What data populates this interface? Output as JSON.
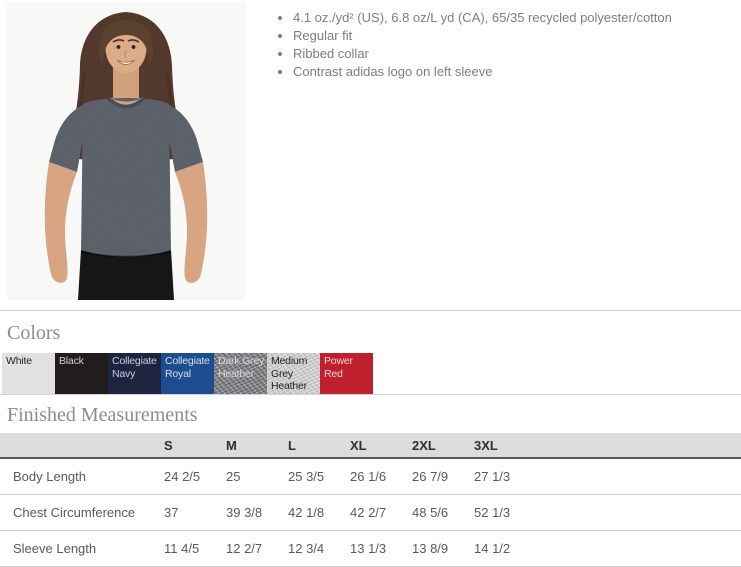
{
  "product": {
    "bullets": [
      "4.1 oz./yd² (US), 6.8 oz/L yd (CA), 65/35 recycled polyester/cotton",
      "Regular fit",
      "Ribbed collar",
      "Contrast adidas logo on left sleeve"
    ],
    "photo": {
      "description": "female model wearing dark grey heather t-shirt",
      "background": "#f7f7f6",
      "shirt_color": "#585d66",
      "pants_color": "#161616",
      "hair_color": "#53392b",
      "skin_color": "#dcab88"
    }
  },
  "colors_section": {
    "title": "Colors",
    "swatches": [
      {
        "label": "White",
        "bg": "#e3e1df",
        "text_color": "#1f1f1f",
        "heather": false
      },
      {
        "label": "Black",
        "bg": "#211d1c",
        "text_color": "#cfcfcf",
        "heather": false
      },
      {
        "label": "Collegiate Navy",
        "bg": "#1d2440",
        "text_color": "#c6cedd",
        "heather": false
      },
      {
        "label": "Collegiate Royal",
        "bg": "#1d4c8f",
        "text_color": "#d6dfeb",
        "heather": false
      },
      {
        "label": "Dark Grey Heather",
        "bg": "#5d6064",
        "text_color": "#d9d9d9",
        "heather": true
      },
      {
        "label": "Medium Grey Heather",
        "bg": "#c8c6c2",
        "text_color": "#1f1f1f",
        "heather": true
      },
      {
        "label": "Power Red",
        "bg": "#bf202e",
        "text_color": "#f0d2d4",
        "heather": false
      }
    ]
  },
  "measurements_section": {
    "title": "Finished Measurements",
    "columns": [
      "S",
      "M",
      "L",
      "XL",
      "2XL",
      "3XL"
    ],
    "rows": [
      {
        "label": "Body Length",
        "values": [
          "24 2/5",
          "25",
          "25 3/5",
          "26 1/6",
          "26 7/9",
          "27 1/3"
        ]
      },
      {
        "label": "Chest Circumference",
        "values": [
          "37",
          "39 3/8",
          "42 1/8",
          "42 2/7",
          "48 5/6",
          "52 1/3"
        ]
      },
      {
        "label": "Sleeve Length",
        "values": [
          "11 4/5",
          "12 2/7",
          "12 3/4",
          "13 1/3",
          "13 8/9",
          "14 1/2"
        ]
      }
    ]
  }
}
